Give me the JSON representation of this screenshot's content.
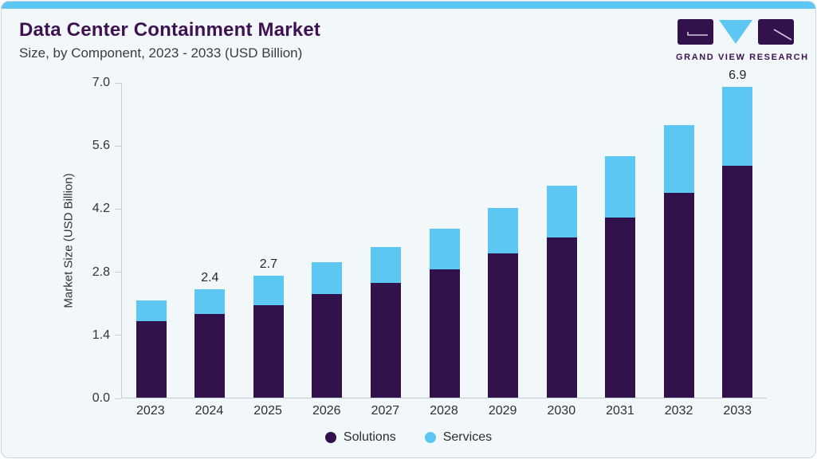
{
  "page": {
    "title": "Data Center Containment Market",
    "subtitle": "Size, by Component, 2023 - 2033 (USD Billion)"
  },
  "logo": {
    "wordmark": "GRAND VIEW RESEARCH"
  },
  "colors": {
    "accent_bar": "#5bc7f2",
    "card_background": "#f2f7fa",
    "card_border": "#ccd6de",
    "title_text": "#3e1252",
    "solutions": "#32124d",
    "services": "#5bc7f2",
    "axis_line": "#c6d0d8"
  },
  "chart_data": {
    "type": "bar",
    "stacked": true,
    "title": "Data Center Containment Market",
    "subtitle": "Size, by Component, 2023 - 2033 (USD Billion)",
    "categories": [
      "2023",
      "2024",
      "2025",
      "2026",
      "2027",
      "2028",
      "2029",
      "2030",
      "2031",
      "2032",
      "2033"
    ],
    "series": [
      {
        "name": "Solutions",
        "color": "#32124d",
        "values": [
          1.7,
          1.85,
          2.05,
          2.3,
          2.55,
          2.85,
          3.2,
          3.55,
          4.0,
          4.55,
          5.15
        ]
      },
      {
        "name": "Services",
        "color": "#5bc7f2",
        "values": [
          0.45,
          0.55,
          0.65,
          0.7,
          0.8,
          0.9,
          1.0,
          1.15,
          1.35,
          1.5,
          1.75
        ]
      }
    ],
    "totals": [
      2.15,
      2.4,
      2.7,
      3.0,
      3.35,
      3.75,
      4.2,
      4.7,
      5.35,
      6.05,
      6.9
    ],
    "totals_labeled": {
      "2024": "2.4",
      "2025": "2.7",
      "2033": "6.9"
    },
    "xlabel": "",
    "ylabel": "Market Size (USD Billion)",
    "yticks": [
      "7.0",
      "5.6",
      "4.2",
      "2.8",
      "1.4",
      "0.0"
    ],
    "ylim": [
      0,
      7.0
    ],
    "grid": false,
    "legend": [
      "Solutions",
      "Services"
    ],
    "legend_position": "bottom"
  }
}
